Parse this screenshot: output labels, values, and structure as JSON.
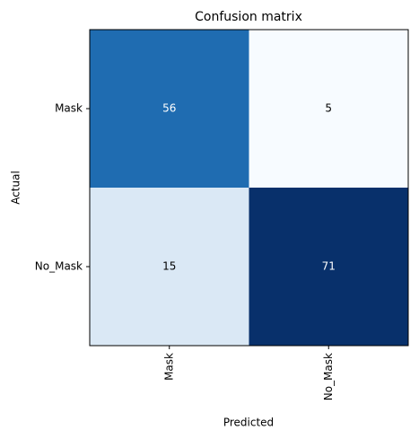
{
  "chart_data": {
    "type": "heatmap",
    "title": "Confusion matrix",
    "x_label": "Predicted",
    "y_label": "Actual",
    "x_categories": [
      "Mask",
      "No_Mask"
    ],
    "y_categories": [
      "Mask",
      "No_Mask"
    ],
    "values": [
      [
        56,
        5
      ],
      [
        15,
        71
      ]
    ],
    "colors": [
      [
        "#1f6cb1",
        "#f7fbff"
      ],
      [
        "#dae8f5",
        "#08306b"
      ]
    ]
  }
}
